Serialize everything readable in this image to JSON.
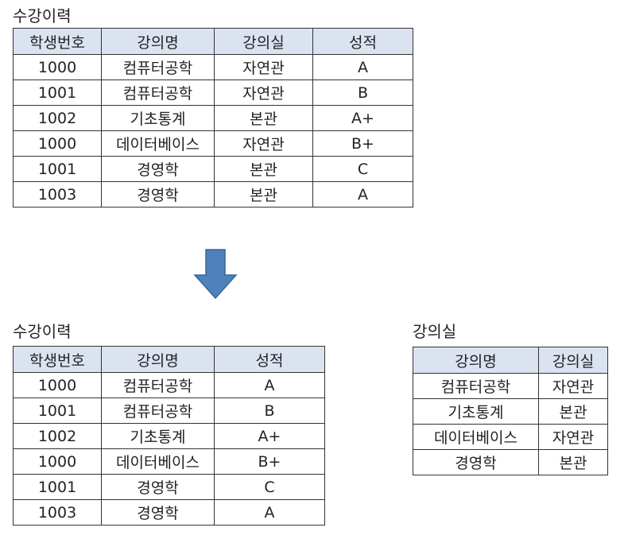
{
  "original_table": {
    "title": "수강이력",
    "headers": [
      "학생번호",
      "강의명",
      "강의실",
      "성적"
    ],
    "rows": [
      [
        "1000",
        "컴퓨터공학",
        "자연관",
        "A"
      ],
      [
        "1001",
        "컴퓨터공학",
        "자연관",
        "B"
      ],
      [
        "1002",
        "기초통계",
        "본관",
        "A+"
      ],
      [
        "1000",
        "데이터베이스",
        "자연관",
        "B+"
      ],
      [
        "1001",
        "경영학",
        "본관",
        "C"
      ],
      [
        "1003",
        "경영학",
        "본관",
        "A"
      ]
    ]
  },
  "arrow": {
    "icon": "arrow-down-icon",
    "color": "#4f81bd",
    "stroke": "#3a6494"
  },
  "history_table": {
    "title": "수강이력",
    "headers": [
      "학생번호",
      "강의명",
      "성적"
    ],
    "rows": [
      [
        "1000",
        "컴퓨터공학",
        "A"
      ],
      [
        "1001",
        "컴퓨터공학",
        "B"
      ],
      [
        "1002",
        "기초통계",
        "A+"
      ],
      [
        "1000",
        "데이터베이스",
        "B+"
      ],
      [
        "1001",
        "경영학",
        "C"
      ],
      [
        "1003",
        "경영학",
        "A"
      ]
    ]
  },
  "room_table": {
    "title": "강의실",
    "headers": [
      "강의명",
      "강의실"
    ],
    "rows": [
      [
        "컴퓨터공학",
        "자연관"
      ],
      [
        "기초통계",
        "본관"
      ],
      [
        "데이터베이스",
        "자연관"
      ],
      [
        "경영학",
        "본관"
      ]
    ]
  },
  "colors": {
    "header_fill": "#dbe3f1",
    "border": "#333333",
    "text": "#222222"
  }
}
